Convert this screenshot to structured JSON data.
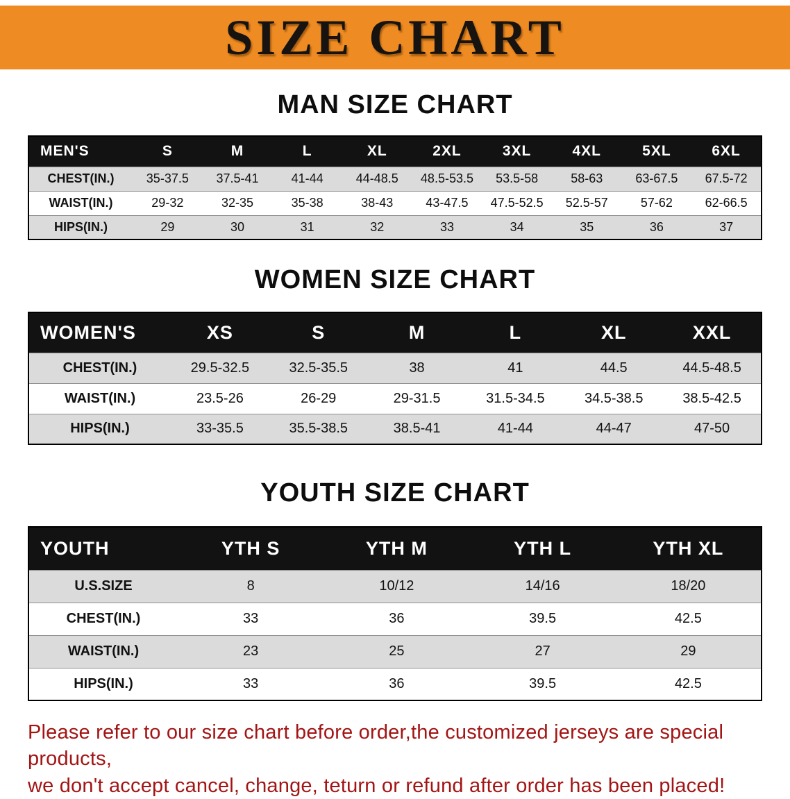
{
  "banner": {
    "title": "SIZE CHART"
  },
  "colors": {
    "banner_bg": "#EE8B22",
    "header_bg": "#121212",
    "stripe": "#DBDBDB",
    "disclaimer_color": "#A31414"
  },
  "sections": [
    {
      "heading": "MAN SIZE CHART",
      "table": {
        "header": [
          "MEN'S",
          "S",
          "M",
          "L",
          "XL",
          "2XL",
          "3XL",
          "4XL",
          "5XL",
          "6XL"
        ],
        "rows": [
          [
            "CHEST(IN.)",
            "35-37.5",
            "37.5-41",
            "41-44",
            "44-48.5",
            "48.5-53.5",
            "53.5-58",
            "58-63",
            "63-67.5",
            "67.5-72"
          ],
          [
            "WAIST(IN.)",
            "29-32",
            "32-35",
            "35-38",
            "38-43",
            "43-47.5",
            "47.5-52.5",
            "52.5-57",
            "57-62",
            "62-66.5"
          ],
          [
            "HIPS(IN.)",
            "29",
            "30",
            "31",
            "32",
            "33",
            "34",
            "35",
            "36",
            "37"
          ]
        ]
      }
    },
    {
      "heading": "WOMEN SIZE CHART",
      "table": {
        "header": [
          "WOMEN'S",
          "XS",
          "S",
          "M",
          "L",
          "XL",
          "XXL"
        ],
        "rows": [
          [
            "CHEST(IN.)",
            "29.5-32.5",
            "32.5-35.5",
            "38",
            "41",
            "44.5",
            "44.5-48.5"
          ],
          [
            "WAIST(IN.)",
            "23.5-26",
            "26-29",
            "29-31.5",
            "31.5-34.5",
            "34.5-38.5",
            "38.5-42.5"
          ],
          [
            "HIPS(IN.)",
            "33-35.5",
            "35.5-38.5",
            "38.5-41",
            "41-44",
            "44-47",
            "47-50"
          ]
        ]
      }
    },
    {
      "heading": "YOUTH SIZE CHART",
      "table": {
        "header": [
          "YOUTH",
          "YTH S",
          "YTH M",
          "YTH L",
          "YTH XL"
        ],
        "rows": [
          [
            "U.S.SIZE",
            "8",
            "10/12",
            "14/16",
            "18/20"
          ],
          [
            "CHEST(IN.)",
            "33",
            "36",
            "39.5",
            "42.5"
          ],
          [
            "WAIST(IN.)",
            "23",
            "25",
            "27",
            "29"
          ],
          [
            "HIPS(IN.)",
            "33",
            "36",
            "39.5",
            "42.5"
          ]
        ]
      }
    }
  ],
  "disclaimer": {
    "line1": "Please refer to our size chart before order,the customized jerseys are special products,",
    "line2": "we don't accept cancel, change, teturn or refund after order has been placed!"
  }
}
